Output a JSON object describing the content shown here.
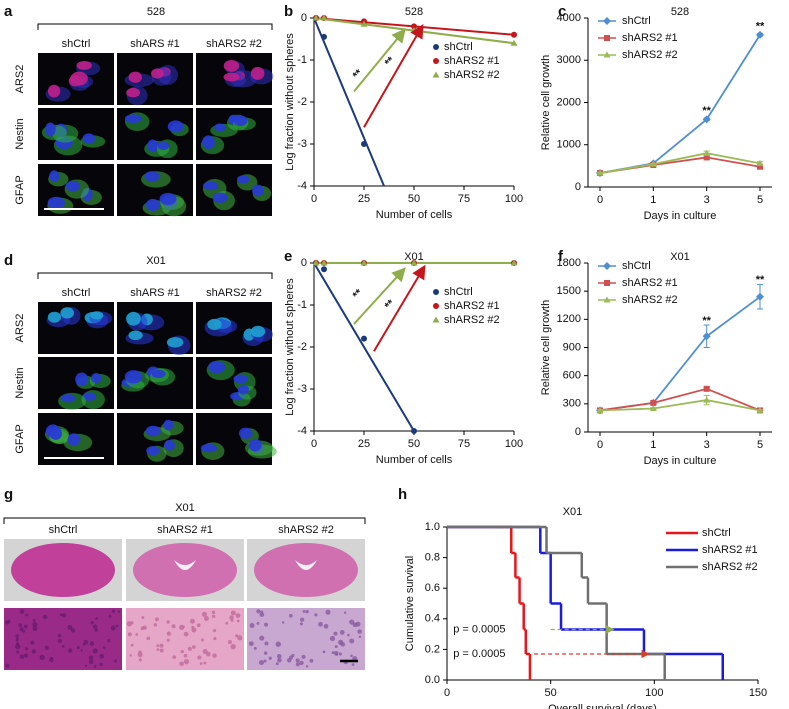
{
  "panels": {
    "a": {
      "letter": "a",
      "header": "528",
      "columns": [
        "shCtrl",
        "shARS #1",
        "shARS2 #2"
      ],
      "rows": [
        "ARS2",
        "Nestin",
        "GFAP"
      ]
    },
    "d": {
      "letter": "d",
      "header": "X01",
      "columns": [
        "shCtrl",
        "shARS #1",
        "shARS2 #2"
      ],
      "rows": [
        "ARS2",
        "Nestin",
        "GFAP"
      ]
    },
    "g": {
      "letter": "g",
      "header": "X01",
      "columns": [
        "shCtrl",
        "shARS2 #1",
        "shARS2 #2"
      ]
    }
  },
  "chart_data": [
    {
      "letter": "b",
      "type": "scatter",
      "title": "528",
      "xlabel": "Number of cells",
      "ylabel": "Log fraction without spheres",
      "xlim": [
        0,
        100
      ],
      "ylim": [
        -4,
        0
      ],
      "xticks": [
        0,
        25,
        50,
        75,
        100
      ],
      "yticks": [
        -4,
        -3,
        -2,
        -1,
        0
      ],
      "legend": "upper right",
      "series": [
        {
          "name": "shCtrl",
          "color": "#1b3a7c",
          "marker": "circle",
          "x": [
            1,
            5,
            25
          ],
          "values": [
            0,
            -0.45,
            -3
          ],
          "fit": {
            "x": [
              0,
              35
            ],
            "values": [
              0,
              -4
            ]
          }
        },
        {
          "name": "shARS2 #1",
          "color": "#c4161c",
          "marker": "circle",
          "x": [
            1,
            5,
            25,
            50,
            100
          ],
          "values": [
            0,
            0,
            -0.08,
            -0.2,
            -0.4
          ],
          "fit": {
            "x": [
              0,
              100
            ],
            "values": [
              0,
              -0.4
            ]
          }
        },
        {
          "name": "shARS2 #2",
          "color": "#8fae4b",
          "marker": "triangle",
          "x": [
            1,
            5,
            25,
            50,
            100
          ],
          "values": [
            0,
            0,
            -0.15,
            -0.3,
            -0.6
          ],
          "fit": {
            "x": [
              0,
              100
            ],
            "values": [
              0,
              -0.6
            ]
          }
        }
      ],
      "annotations": [
        "**",
        "**"
      ]
    },
    {
      "letter": "c",
      "type": "line",
      "title": "528",
      "xlabel": "Days in culture",
      "ylabel": "Relative cell growth",
      "categories": [
        "0",
        "1",
        "3",
        "5"
      ],
      "ylim": [
        0,
        4000
      ],
      "yticks": [
        0,
        1000,
        2000,
        3000,
        4000
      ],
      "legend": "upper left",
      "series": [
        {
          "name": "shCtrl",
          "color": "#4f8fd0",
          "marker": "diamond",
          "values": [
            330,
            560,
            1600,
            3600
          ],
          "errors": [
            0,
            0,
            30,
            30
          ]
        },
        {
          "name": "shARS2 #1",
          "color": "#d05050",
          "marker": "square",
          "values": [
            330,
            520,
            700,
            480
          ],
          "errors": [
            20,
            20,
            40,
            40
          ]
        },
        {
          "name": "shARS2 #2",
          "color": "#9bbb59",
          "marker": "triangle",
          "values": [
            330,
            540,
            800,
            560
          ],
          "errors": [
            20,
            20,
            50,
            40
          ]
        }
      ],
      "annotations": [
        "**",
        "**"
      ]
    },
    {
      "letter": "e",
      "type": "scatter",
      "title": "X01",
      "xlabel": "Number of cells",
      "ylabel": "Log fraction without spheres",
      "xlim": [
        0,
        100
      ],
      "ylim": [
        -4,
        0
      ],
      "xticks": [
        0,
        25,
        50,
        75,
        100
      ],
      "yticks": [
        -4,
        -3,
        -2,
        -1,
        0
      ],
      "legend": "upper right",
      "series": [
        {
          "name": "shCtrl",
          "color": "#1b3a7c",
          "marker": "circle",
          "x": [
            1,
            5,
            25,
            50
          ],
          "values": [
            0,
            -0.15,
            -1.8,
            -4
          ],
          "fit": {
            "x": [
              0,
              50
            ],
            "values": [
              0,
              -4
            ]
          }
        },
        {
          "name": "shARS2 #1",
          "color": "#c4161c",
          "marker": "circle",
          "x": [
            1,
            5,
            25,
            50,
            100
          ],
          "values": [
            0,
            0,
            0,
            0,
            0
          ],
          "fit": {
            "x": [
              0,
              100
            ],
            "values": [
              0,
              0
            ]
          }
        },
        {
          "name": "shARS2 #2",
          "color": "#8fae4b",
          "marker": "triangle",
          "x": [
            1,
            5,
            25,
            50,
            100
          ],
          "values": [
            0,
            0,
            0,
            0,
            0
          ],
          "fit": {
            "x": [
              0,
              100
            ],
            "values": [
              0,
              0
            ]
          }
        }
      ],
      "annotations": [
        "**",
        "**"
      ]
    },
    {
      "letter": "f",
      "type": "line",
      "title": "X01",
      "xlabel": "Days in culture",
      "ylabel": "Relative cell growth",
      "categories": [
        "0",
        "1",
        "3",
        "5"
      ],
      "ylim": [
        0,
        1800
      ],
      "yticks": [
        0,
        300,
        600,
        900,
        1200,
        1500,
        1800
      ],
      "legend": "upper left",
      "series": [
        {
          "name": "shCtrl",
          "color": "#4f8fd0",
          "marker": "diamond",
          "values": [
            230,
            310,
            1020,
            1440
          ],
          "errors": [
            0,
            20,
            120,
            130
          ]
        },
        {
          "name": "shARS2 #1",
          "color": "#d05050",
          "marker": "square",
          "values": [
            230,
            310,
            460,
            230
          ],
          "errors": [
            10,
            10,
            20,
            10
          ]
        },
        {
          "name": "shARS2 #2",
          "color": "#9bbb59",
          "marker": "triangle",
          "values": [
            230,
            250,
            340,
            230
          ],
          "errors": [
            10,
            10,
            50,
            10
          ]
        }
      ],
      "annotations": [
        "**",
        "**"
      ]
    },
    {
      "letter": "h",
      "type": "step",
      "title": "X01",
      "xlabel": "Overall survival (days)",
      "ylabel": "Cumulative survival",
      "xlim": [
        0,
        150
      ],
      "ylim": [
        0,
        1
      ],
      "xticks": [
        0,
        50,
        100,
        150
      ],
      "yticks": [
        {
          "value": 0,
          "label": "0.0"
        },
        {
          "value": 0.2,
          "label": "0.2"
        },
        {
          "value": 0.4,
          "label": "0.4"
        },
        {
          "value": 0.6,
          "label": "0.6"
        },
        {
          "value": 0.8,
          "label": "0.8"
        },
        {
          "value": 1,
          "label": "1.0"
        }
      ],
      "legend": "upper right",
      "series": [
        {
          "name": "shCtrl",
          "color": "#e8161c",
          "x": [
            0,
            31,
            33,
            35,
            37,
            38,
            40
          ],
          "values": [
            1,
            0.83,
            0.67,
            0.5,
            0.33,
            0.17,
            0
          ]
        },
        {
          "name": "shARS2 #1",
          "color": "#1a1ae0",
          "x": [
            0,
            45,
            50,
            55,
            95,
            133
          ],
          "values": [
            1,
            0.83,
            0.5,
            0.33,
            0.17,
            0
          ]
        },
        {
          "name": "shARS2 #2",
          "color": "#707070",
          "x": [
            0,
            48,
            65,
            68,
            77,
            105
          ],
          "values": [
            1,
            0.83,
            0.67,
            0.5,
            0.17,
            0
          ]
        }
      ],
      "annotations": [
        {
          "text": "p = 0.0005",
          "color": "#8fae4b"
        },
        {
          "text": "p = 0.0005",
          "color": "#d0402a"
        }
      ]
    }
  ]
}
